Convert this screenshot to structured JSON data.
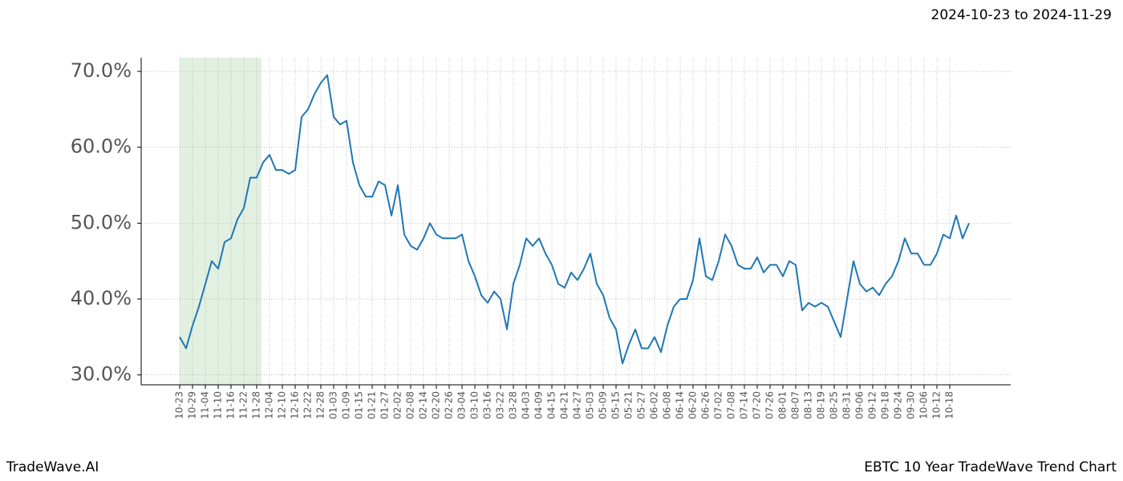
{
  "chart_data": {
    "type": "line",
    "title": "EBTC 10 Year TradeWave Trend Chart",
    "brand": "TradeWave.AI",
    "range_label": "2024-10-23 to 2024-11-29",
    "shade": [
      "10-23",
      "11-28"
    ],
    "shade_color": "#d6e9d6",
    "color": "#1f77b4",
    "grid": true,
    "categories": [
      "10-23",
      null,
      "10-29",
      null,
      "11-04",
      null,
      "11-10",
      null,
      "11-16",
      null,
      "11-22",
      null,
      "11-28",
      null,
      "12-04",
      null,
      "12-10",
      null,
      "12-16",
      null,
      "12-22",
      null,
      "12-28",
      null,
      "01-03",
      null,
      "01-09",
      null,
      "01-15",
      null,
      "01-21",
      null,
      "01-27",
      null,
      "02-02",
      null,
      "02-08",
      null,
      "02-14",
      null,
      "02-20",
      null,
      "02-26",
      null,
      "03-04",
      null,
      "03-10",
      null,
      "03-16",
      null,
      "03-22",
      null,
      "03-28",
      null,
      "04-03",
      null,
      "04-09",
      null,
      "04-15",
      null,
      "04-21",
      null,
      "04-27",
      null,
      "05-03",
      null,
      "05-09",
      null,
      "05-15",
      null,
      "05-21",
      null,
      "05-27",
      null,
      "06-02",
      null,
      "06-08",
      null,
      "06-14",
      null,
      "06-20",
      null,
      "06-26",
      null,
      "07-02",
      null,
      "07-08",
      null,
      "07-14",
      null,
      "07-20",
      null,
      "07-26",
      null,
      "08-01",
      null,
      "08-07",
      null,
      "08-13",
      null,
      "08-19",
      null,
      "08-25",
      null,
      "08-31",
      null,
      "09-06",
      null,
      "09-12",
      null,
      "09-18",
      null,
      "09-24",
      null,
      "09-30",
      null,
      "10-06",
      null,
      "10-12",
      null,
      "10-18",
      null,
      null,
      null
    ],
    "values": [
      35,
      33.5,
      36.5,
      39,
      42,
      45,
      44,
      47.5,
      48,
      50.5,
      52,
      56,
      56,
      58,
      59,
      57,
      57,
      56.5,
      57,
      64,
      65,
      67,
      68.5,
      69.5,
      64,
      63,
      63.5,
      58,
      55,
      53.5,
      53.5,
      55.5,
      55,
      51,
      55,
      48.5,
      47,
      46.5,
      48,
      50,
      48.5,
      48,
      48,
      48,
      48.5,
      45,
      43,
      40.5,
      39.5,
      41,
      40,
      36,
      42,
      44.5,
      48,
      47,
      48,
      46,
      44.5,
      42,
      41.5,
      43.5,
      42.5,
      44,
      46,
      42,
      40.5,
      37.5,
      36,
      31.5,
      34,
      36,
      33.5,
      33.5,
      35,
      33,
      36.5,
      39,
      40,
      40,
      42.5,
      48,
      43,
      42.5,
      45,
      48.5,
      47,
      44.5,
      44,
      44,
      45.5,
      43.5,
      44.5,
      44.5,
      43,
      45,
      44.5,
      38.5,
      39.5,
      39,
      39.5,
      39,
      37,
      35,
      40,
      45,
      42,
      41,
      41.5,
      40.5,
      42,
      43,
      45,
      48,
      46,
      46,
      44.5,
      44.5,
      46,
      48.5,
      48,
      51,
      48,
      50
    ],
    "ylim": [
      28.7,
      71.8
    ],
    "yticks": [
      {
        "value": 30,
        "label": "30.0%"
      },
      {
        "value": 40,
        "label": "40.0%"
      },
      {
        "value": 50,
        "label": "50.0%"
      },
      {
        "value": 60,
        "label": "60.0%"
      },
      {
        "value": 70,
        "label": "70.0%"
      }
    ]
  }
}
